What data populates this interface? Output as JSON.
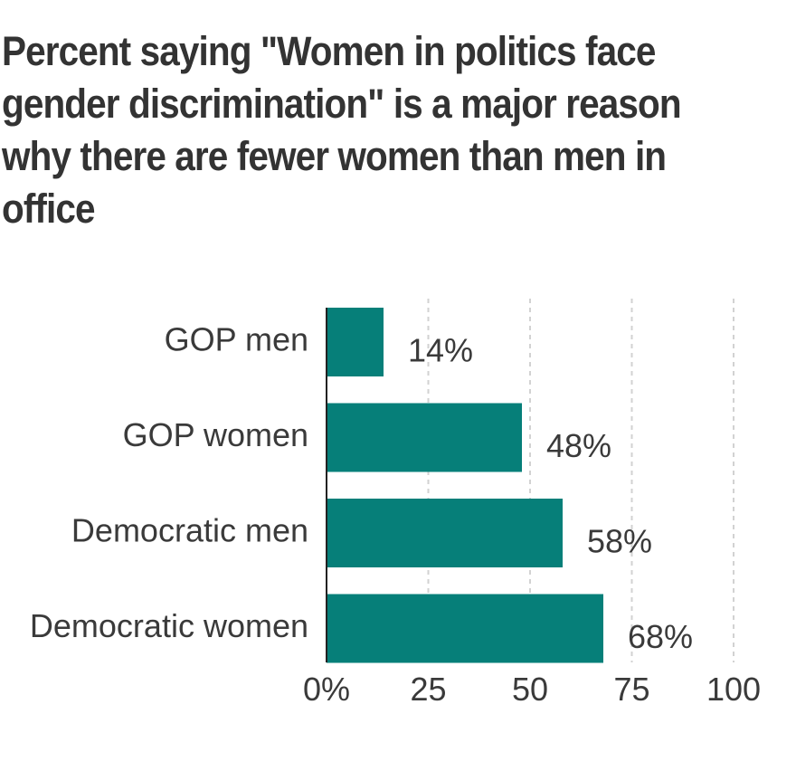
{
  "chart_data": {
    "type": "bar",
    "orientation": "horizontal",
    "title": "Percent saying \"Women in politics face gender discrimination\" is a major reason why there are fewer women than men in office",
    "categories": [
      "GOP men",
      "GOP women",
      "Democratic men",
      "Democratic women"
    ],
    "values": [
      14,
      48,
      58,
      68
    ],
    "value_labels": [
      "14%",
      "48%",
      "58%",
      "68%"
    ],
    "xlim": [
      0,
      100
    ],
    "xticks": [
      0,
      25,
      50,
      75,
      100
    ],
    "xtick_labels": [
      "0%",
      "25",
      "50",
      "75",
      "100"
    ],
    "xlabel": "",
    "ylabel": "",
    "grid": "vertical-dashed",
    "bar_color": "#067f79",
    "text_color": "#3a3a3a",
    "grid_color": "#d2d2d2",
    "axis_color": "#222222"
  }
}
